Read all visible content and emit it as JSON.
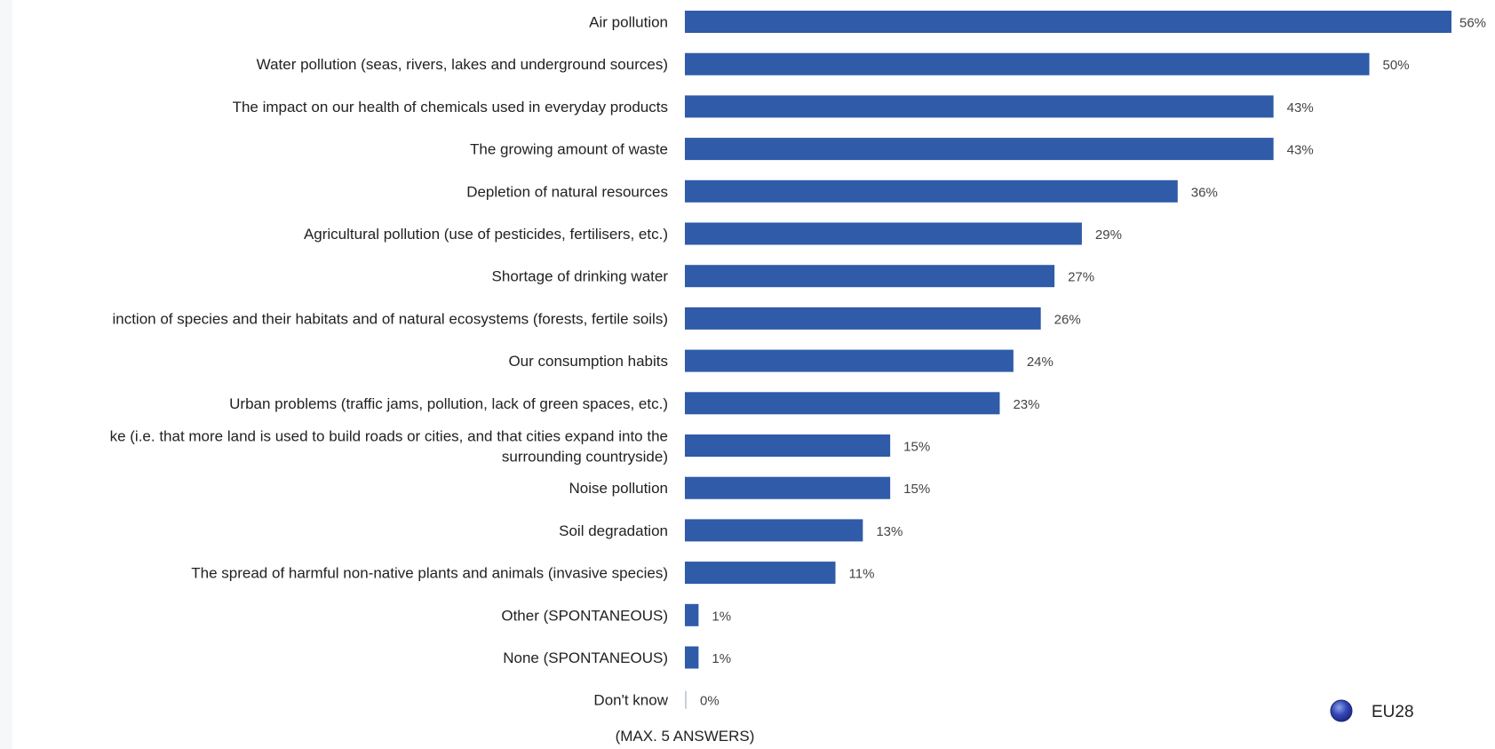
{
  "chart_data": {
    "type": "bar",
    "orientation": "horizontal",
    "title": "",
    "xlabel": "",
    "ylabel": "",
    "xlim": [
      0,
      56
    ],
    "grid": false,
    "categories": [
      "Air pollution",
      "Water pollution (seas, rivers, lakes and underground sources)",
      "The impact on our health of chemicals used in everyday products",
      "The growing amount of waste",
      "Depletion of natural resources",
      "Agricultural pollution (use of pesticides, fertilisers, etc.)",
      "Shortage of drinking water",
      "inction of species and their habitats and of natural ecosystems (forests, fertile soils)",
      "Our consumption habits",
      "Urban problems (traffic jams, pollution, lack of green spaces, etc.)",
      "ke (i.e. that more land is used to build roads or cities, and that cities expand into the surrounding countryside)",
      "Noise pollution",
      "Soil degradation",
      "The spread of harmful non-native plants and animals (invasive species)",
      "Other (SPONTANEOUS)",
      "None (SPONTANEOUS)",
      "Don't know"
    ],
    "category_lines": [
      [
        "Air pollution"
      ],
      [
        "Water pollution (seas, rivers, lakes and underground sources)"
      ],
      [
        "The impact on our health of chemicals used in everyday products"
      ],
      [
        "The growing amount of waste"
      ],
      [
        "Depletion of natural resources"
      ],
      [
        "Agricultural pollution (use of pesticides, fertilisers, etc.)"
      ],
      [
        "Shortage of drinking water"
      ],
      [
        "inction of species and their habitats and of natural ecosystems (forests, fertile soils)"
      ],
      [
        "Our consumption habits"
      ],
      [
        "Urban problems (traffic jams, pollution, lack of green spaces, etc.)"
      ],
      [
        "ke (i.e. that more land is used to build roads or cities, and that cities expand into the",
        "surrounding countryside)"
      ],
      [
        "Noise pollution"
      ],
      [
        "Soil degradation"
      ],
      [
        "The spread of harmful non-native plants and animals (invasive species)"
      ],
      [
        "Other (SPONTANEOUS)"
      ],
      [
        "None (SPONTANEOUS)"
      ],
      [
        "Don't know"
      ]
    ],
    "series": [
      {
        "name": "EU28",
        "color": "#2f5ba8",
        "values": [
          56,
          50,
          43,
          43,
          36,
          29,
          27,
          26,
          24,
          23,
          15,
          15,
          13,
          11,
          1,
          1,
          0
        ],
        "value_labels": [
          "56%",
          "50%",
          "43%",
          "43%",
          "36%",
          "29%",
          "27%",
          "26%",
          "24%",
          "23%",
          "15%",
          "15%",
          "13%",
          "11%",
          "1%",
          "1%",
          "0%"
        ]
      }
    ],
    "footnote": "(MAX. 5 ANSWERS)",
    "legend": {
      "label": "EU28",
      "position": "bottom-right"
    }
  }
}
